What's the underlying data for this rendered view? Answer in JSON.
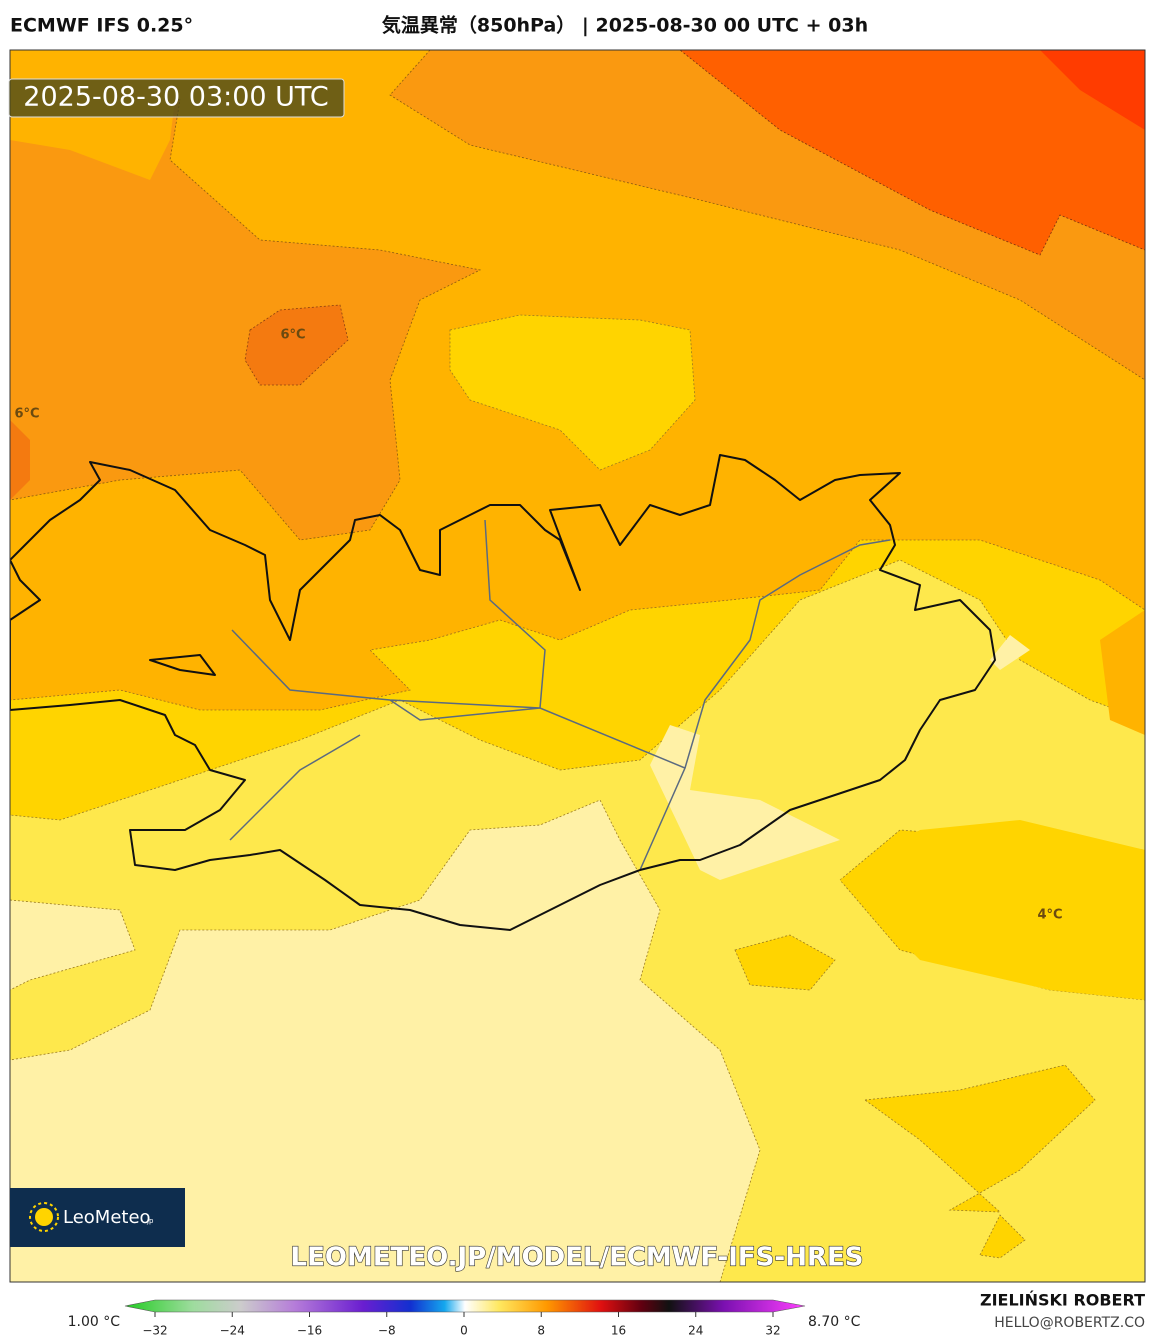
{
  "header": {
    "left_title": "ECMWF IFS 0.25°",
    "center_title": "気温異常（850hPa） | 2025-08-30 00 UTC + 03h"
  },
  "map": {
    "timestamp": "2025-08-30 03:00 UTC",
    "labels": [
      "6°C",
      "6°C",
      "4°C"
    ],
    "watermark": "LEOMETEO.JP/MODEL/ECMWF-IFS-HRES"
  },
  "logo": {
    "name": "LeoMeteo",
    "suffix": "jp"
  },
  "colorbar": {
    "min_label": "1.00 °C",
    "max_label": "8.70 °C",
    "lim": [
      -32,
      32
    ],
    "ticks": [
      {
        "value": -32,
        "label": "−32"
      },
      {
        "value": -24,
        "label": "−24"
      },
      {
        "value": -16,
        "label": "−16"
      },
      {
        "value": -8,
        "label": "−8"
      },
      0,
      8,
      16,
      24,
      32
    ]
  },
  "footer": {
    "author": "ZIELIŃSKI ROBERT",
    "email": "HELLO@ROBERTZ.CO"
  }
}
